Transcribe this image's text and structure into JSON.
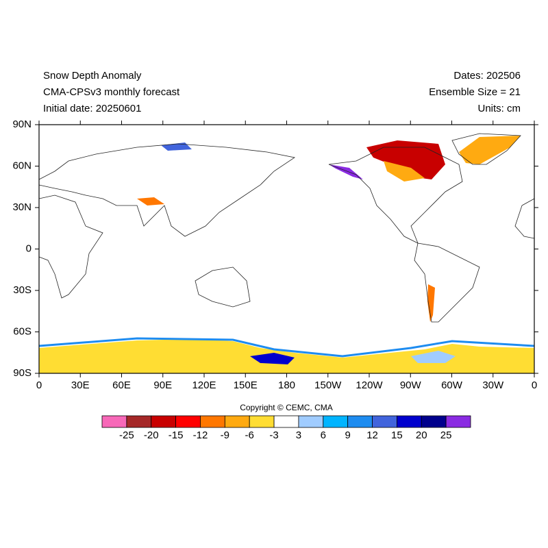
{
  "header": {
    "left": [
      "Snow Depth Anomaly",
      "CMA-CPSv3 monthly forecast",
      "Initial date: 20250601"
    ],
    "right": [
      "Dates: 202506",
      "Ensemble Size = 21",
      "Units: cm"
    ]
  },
  "map": {
    "lat_labels": [
      "90N",
      "60N",
      "30N",
      "0",
      "30S",
      "60S",
      "90S"
    ],
    "lon_labels": [
      "0",
      "30E",
      "60E",
      "90E",
      "120E",
      "150E",
      "180",
      "150W",
      "120W",
      "90W",
      "60W",
      "30W",
      "0"
    ]
  },
  "copyright": "Copyright © CEMC, CMA",
  "colorbar": {
    "levels": [
      -25,
      -20,
      -15,
      -12,
      -9,
      -6,
      -3,
      3,
      6,
      9,
      12,
      15,
      20,
      25
    ],
    "colors": [
      "#f768b8",
      "#a52828",
      "#c80000",
      "#ff0000",
      "#ff7700",
      "#ffaa11",
      "#ffdd33",
      "#ffffff",
      "#a0ccff",
      "#00b4ff",
      "#1e8cf0",
      "#4164dc",
      "#0000cd",
      "#00008c",
      "#8a2be2"
    ]
  }
}
